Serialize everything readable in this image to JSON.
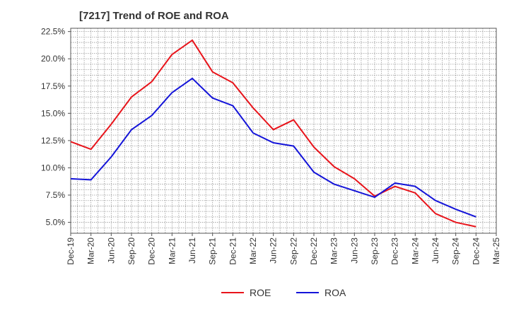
{
  "chart_data": {
    "type": "line",
    "title": "[7217]  Trend of ROE and ROA",
    "x": [
      "Dec-19",
      "Mar-20",
      "Jun-20",
      "Sep-20",
      "Dec-20",
      "Mar-21",
      "Jun-21",
      "Sep-21",
      "Dec-21",
      "Mar-22",
      "Jun-22",
      "Sep-22",
      "Dec-22",
      "Mar-23",
      "Jun-23",
      "Sep-23",
      "Dec-23",
      "Mar-24",
      "Jun-24",
      "Sep-24",
      "Dec-24",
      "Mar-25"
    ],
    "y_ticks": [
      "5.0%",
      "7.5%",
      "10.0%",
      "12.5%",
      "15.0%",
      "17.5%",
      "20.0%",
      "22.5%"
    ],
    "ylim": [
      4.0,
      22.8
    ],
    "grid": true,
    "legend_position": "bottom-center",
    "series": [
      {
        "name": "ROE",
        "color": "#e8141b",
        "values": [
          12.4,
          11.7,
          14.0,
          16.5,
          17.9,
          20.4,
          21.7,
          18.8,
          17.8,
          15.5,
          13.5,
          14.4,
          11.9,
          10.1,
          9.0,
          7.4,
          8.3,
          7.7,
          5.8,
          5.0,
          4.6,
          null
        ]
      },
      {
        "name": "ROA",
        "color": "#1414d9",
        "values": [
          9.0,
          8.9,
          11.0,
          13.5,
          14.8,
          16.9,
          18.2,
          16.4,
          15.7,
          13.2,
          12.3,
          12.0,
          9.6,
          8.5,
          7.9,
          7.3,
          8.6,
          8.3,
          7.0,
          6.2,
          5.5,
          null
        ]
      }
    ]
  }
}
